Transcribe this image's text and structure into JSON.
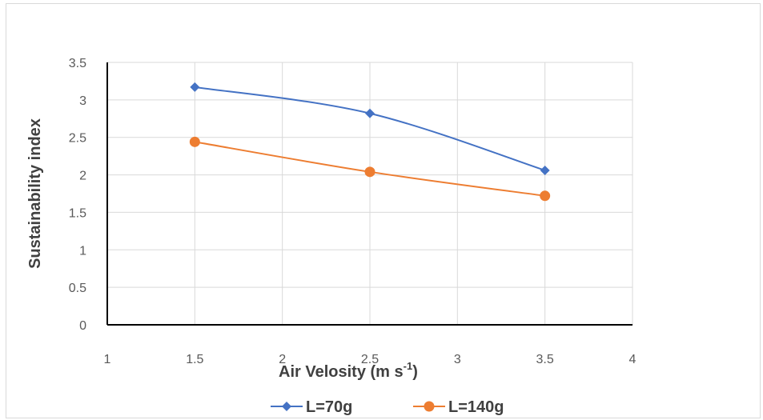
{
  "chart_data": {
    "type": "scatter",
    "title": "",
    "xlabel": "Air Velosity (m s",
    "xlabel_superscript": "-1",
    "xlabel_suffix": ")",
    "ylabel": "Sustainability index",
    "xlim": [
      1,
      4
    ],
    "ylim": [
      0,
      3.5
    ],
    "x_ticks": [
      "1",
      "1.5",
      "2",
      "2.5",
      "3",
      "3.5",
      "4"
    ],
    "y_ticks": [
      "0",
      "0.5",
      "1",
      "1.5",
      "2",
      "2.5",
      "3",
      "3.5"
    ],
    "grid": true,
    "legend_position": "bottom",
    "series": [
      {
        "name": "L=70g",
        "color": "#4472C4",
        "marker": "diamond",
        "x": [
          1.5,
          2.5,
          3.5
        ],
        "values": [
          3.17,
          2.82,
          2.06
        ]
      },
      {
        "name": "L=140g",
        "color": "#ED7D31",
        "marker": "circle",
        "x": [
          1.5,
          2.5,
          3.5
        ],
        "values": [
          2.44,
          2.04,
          1.72
        ]
      }
    ]
  }
}
